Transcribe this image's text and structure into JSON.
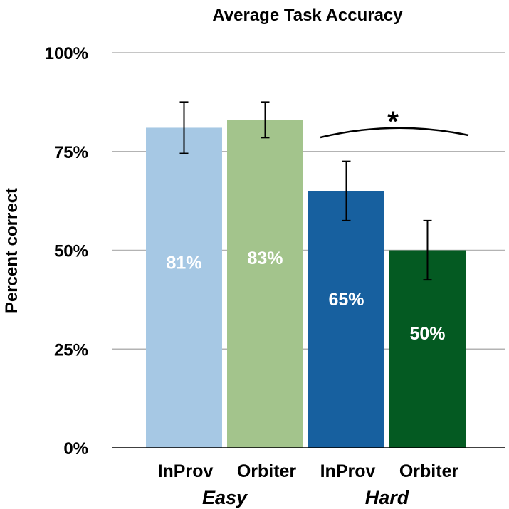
{
  "chart_data": {
    "type": "bar",
    "title": "Average Task Accuracy",
    "ylabel": "Percent correct",
    "ylim": [
      0,
      100
    ],
    "yticks": [
      0,
      25,
      50,
      75,
      100
    ],
    "ytick_labels": [
      "0%",
      "25%",
      "50%",
      "75%",
      "100%"
    ],
    "grid": true,
    "categories": [
      "InProv",
      "Orbiter",
      "InProv",
      "Orbiter"
    ],
    "groups": [
      "Easy",
      "Hard"
    ],
    "values": [
      81,
      83,
      65,
      50
    ],
    "value_labels": [
      "81%",
      "83%",
      "65%",
      "50%"
    ],
    "error_low": [
      74.5,
      78.5,
      57.5,
      42.5
    ],
    "error_high": [
      87.5,
      87.5,
      72.5,
      57.5
    ],
    "colors": [
      "#a6c8e4",
      "#a3c48c",
      "#17609f",
      "#045a22"
    ],
    "significance": "*"
  }
}
